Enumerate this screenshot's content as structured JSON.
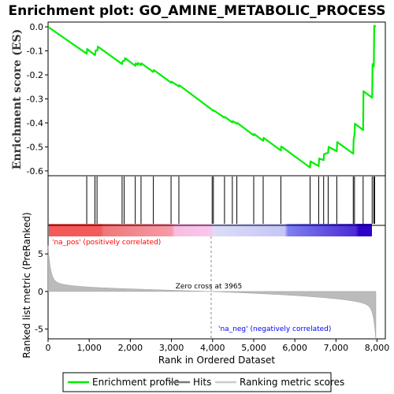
{
  "chart_data": {
    "type": "line",
    "title": "Enrichment plot: GO_AMINE_METABOLIC_PROCESS",
    "xlabel": "Rank in Ordered Dataset",
    "es_panel": {
      "ylabel": "Enrichment score (ES)",
      "ylim": [
        -0.62,
        0.02
      ],
      "yticks": [
        "0.0",
        "-0.1",
        "-0.2",
        "-0.3",
        "-0.4",
        "-0.5",
        "-0.6"
      ],
      "ytick_values": [
        0.0,
        -0.1,
        -0.2,
        -0.3,
        -0.4,
        -0.5,
        -0.6
      ],
      "series": [
        {
          "name": "Enrichment profile",
          "color": "#00ff00",
          "x": [
            0,
            940,
            950,
            1140,
            1160,
            1200,
            1210,
            1800,
            1810,
            1860,
            1870,
            2120,
            2130,
            2180,
            2190,
            2260,
            2270,
            2560,
            2570,
            2990,
            3000,
            3180,
            3190,
            3990,
            4000,
            4020,
            4030,
            4290,
            4300,
            4480,
            4490,
            4590,
            4600,
            5000,
            5010,
            5230,
            5240,
            5660,
            5670,
            6370,
            6380,
            6580,
            6590,
            6700,
            6710,
            6810,
            6820,
            7020,
            7030,
            7420,
            7430,
            7450,
            7460,
            7660,
            7670,
            7880,
            7890,
            7920,
            7930,
            7970
          ],
          "y": [
            0.0,
            -0.112,
            -0.092,
            -0.118,
            -0.098,
            -0.098,
            -0.082,
            -0.155,
            -0.143,
            -0.14,
            -0.13,
            -0.162,
            -0.152,
            -0.158,
            -0.15,
            -0.16,
            -0.152,
            -0.188,
            -0.18,
            -0.232,
            -0.228,
            -0.248,
            -0.243,
            -0.346,
            -0.348,
            -0.35,
            -0.348,
            -0.378,
            -0.375,
            -0.398,
            -0.393,
            -0.403,
            -0.4,
            -0.452,
            -0.446,
            -0.475,
            -0.462,
            -0.515,
            -0.498,
            -0.586,
            -0.56,
            -0.58,
            -0.548,
            -0.555,
            -0.53,
            -0.525,
            -0.5,
            -0.518,
            -0.48,
            -0.528,
            -0.468,
            -0.45,
            -0.403,
            -0.43,
            -0.268,
            -0.295,
            -0.155,
            -0.165,
            0.005,
            0.0
          ]
        }
      ]
    },
    "hits": {
      "name": "Hits",
      "color": "#000000",
      "x": [
        940,
        1140,
        1190,
        1800,
        1850,
        2120,
        2260,
        2560,
        2990,
        3180,
        3990,
        4020,
        4290,
        4480,
        4590,
        5000,
        5230,
        5660,
        6370,
        6580,
        6700,
        6810,
        7020,
        7420,
        7450,
        7660,
        7880,
        7920,
        7940
      ]
    },
    "ranking_panel": {
      "name": "Ranking metric scores",
      "ylabel": "Ranked list metric (PreRanked)",
      "ylim": [
        -6.3,
        8.8
      ],
      "yticks": [
        "5",
        "0",
        "-5"
      ],
      "ytick_values": [
        5,
        0,
        -5
      ],
      "n": 7970,
      "zero_cross": 3965,
      "zero_cross_label": "Zero cross at 3965",
      "pos_label": "'na_pos' (positively correlated)",
      "neg_label": "'na_neg' (negatively correlated)",
      "pos_label_color": "#ff0000",
      "neg_label_color": "#0000ff"
    },
    "x_axis": {
      "xlim": [
        0,
        8200
      ],
      "xticks": [
        "0",
        "1,000",
        "2,000",
        "3,000",
        "4,000",
        "5,000",
        "6,000",
        "7,000",
        "8,000"
      ],
      "xtick_values": [
        0,
        1000,
        2000,
        3000,
        4000,
        5000,
        6000,
        7000,
        8000
      ]
    },
    "legend": {
      "placement": "bottom",
      "entries": [
        "Enrichment profile",
        "Hits",
        "Ranking metric scores"
      ]
    }
  }
}
